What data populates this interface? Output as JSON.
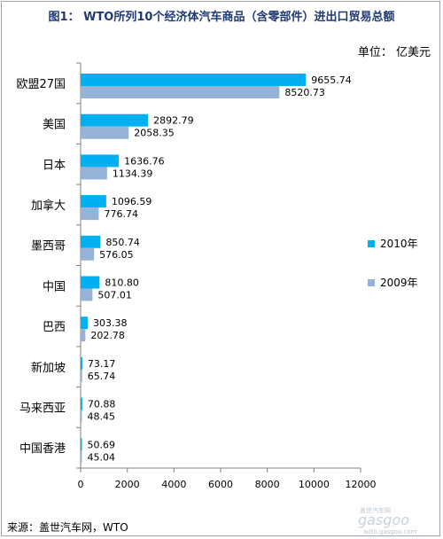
{
  "title": "图1： WTO所列10个经济体汽车商品（含零部件）进出口贸易总额",
  "unit_label": "单位：  亿美元",
  "source": "来源：盖世汽车网，WTO",
  "watermark": {
    "text": "gasgoo",
    "subtext": "盖世汽车网",
    "url": "auto.gasgoo.com"
  },
  "colors": {
    "series_2010": "#00b0f0",
    "series_2009": "#95b3d7",
    "axis": "#808080"
  },
  "chart_data": {
    "type": "bar",
    "orientation": "horizontal",
    "categories": [
      "欧盟27国",
      "美国",
      "日本",
      "加拿大",
      "墨西哥",
      "中国",
      "巴西",
      "新加坡",
      "马来西亚",
      "中国香港"
    ],
    "series": [
      {
        "name": "2010年",
        "values": [
          9655.74,
          2892.79,
          1636.76,
          1096.59,
          850.74,
          810.8,
          303.38,
          73.17,
          70.88,
          50.69
        ],
        "labels": [
          "9655.74",
          "2892.79",
          "1636.76",
          "1096.59",
          "850.74",
          "810.80",
          "303.38",
          "73.17",
          "70.88",
          "50.69"
        ]
      },
      {
        "name": "2009年",
        "values": [
          8520.73,
          2058.35,
          1134.39,
          776.74,
          576.05,
          507.01,
          202.78,
          65.74,
          48.45,
          45.04
        ],
        "labels": [
          "8520.73",
          "2058.35",
          "1134.39",
          "776.74",
          "576.05",
          "507.01",
          "202.78",
          "65.74",
          "48.45",
          "45.04"
        ]
      }
    ],
    "xlim": [
      0,
      12000
    ],
    "x_ticks": [
      0,
      2000,
      4000,
      6000,
      8000,
      10000,
      12000
    ],
    "grid": false,
    "legend_position": "right"
  }
}
